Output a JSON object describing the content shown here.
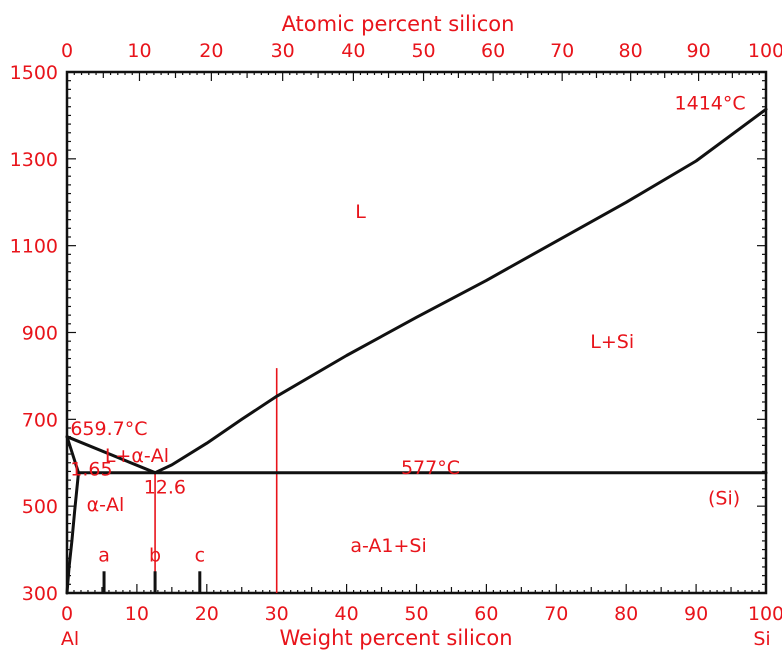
{
  "chart_data": {
    "type": "line",
    "title": "",
    "xlabel": "Weight percent silicon",
    "ylabel": "",
    "top_axis_label": "Atomic percent silicon",
    "xlim": [
      0,
      100
    ],
    "ylim": [
      300,
      1500
    ],
    "x_ticks": [
      "0",
      "10",
      "20",
      "30",
      "40",
      "50",
      "60",
      "70",
      "80",
      "90",
      "100"
    ],
    "y_ticks": [
      "300",
      "500",
      "700",
      "900",
      "1100",
      "1300",
      "1500"
    ],
    "top_ticks": [
      {
        "atomic": 0,
        "label": "0"
      },
      {
        "atomic": 10,
        "label": "10"
      },
      {
        "atomic": 20,
        "label": "20"
      },
      {
        "atomic": 30,
        "label": "30"
      },
      {
        "atomic": 40,
        "label": "40"
      },
      {
        "atomic": 50,
        "label": "50"
      },
      {
        "atomic": 60,
        "label": "60"
      },
      {
        "atomic": 70,
        "label": "70"
      },
      {
        "atomic": 80,
        "label": "80"
      },
      {
        "atomic": 90,
        "label": "90"
      },
      {
        "atomic": 100,
        "label": "100"
      }
    ],
    "end_labels": {
      "left": "Al",
      "right": "Si"
    },
    "series": [
      {
        "values": [
          [
            0,
            660
          ],
          [
            12.6,
            577
          ]
        ]
      },
      {
        "values": [
          [
            12.6,
            577
          ],
          [
            15,
            595
          ],
          [
            20,
            645
          ],
          [
            25,
            700
          ],
          [
            30,
            753
          ],
          [
            40,
            847
          ],
          [
            50,
            935
          ],
          [
            60,
            1020
          ],
          [
            70,
            1110
          ],
          [
            80,
            1200
          ],
          [
            90,
            1295
          ],
          [
            100,
            1414
          ]
        ]
      },
      {
        "values": [
          [
            0,
            660
          ],
          [
            1.65,
            577
          ]
        ]
      },
      {
        "values": [
          [
            0,
            300
          ],
          [
            0.3,
            360
          ],
          [
            0.7,
            420
          ],
          [
            1.1,
            490
          ],
          [
            1.65,
            577
          ]
        ]
      },
      {
        "values": [
          [
            1.65,
            577
          ],
          [
            100,
            577
          ]
        ]
      }
    ],
    "guide_lines": [
      {
        "x": 12.6,
        "y_from": 300,
        "y_to": 577
      },
      {
        "x": 30,
        "y_from": 300,
        "y_to": 818
      }
    ],
    "alloy_markers": [
      {
        "label": "a",
        "x": 5.3,
        "y_top": 350
      },
      {
        "label": "b",
        "x": 12.6,
        "y_top": 350
      },
      {
        "label": "c",
        "x": 19,
        "y_top": 350
      }
    ],
    "annotations": [
      {
        "text": "L",
        "x": 42,
        "y": 1180
      },
      {
        "text": "L+Si",
        "x": 78,
        "y": 880
      },
      {
        "text": "1414°C",
        "x": 92,
        "y": 1430
      },
      {
        "text": "659.7°C",
        "x": 6,
        "y": 680
      },
      {
        "text": "L+α-Al",
        "x": 10,
        "y": 618
      },
      {
        "text": "1.65",
        "x": 3.5,
        "y": 587
      },
      {
        "text": "577°C",
        "x": 52,
        "y": 590
      },
      {
        "text": "12.6",
        "x": 14,
        "y": 545
      },
      {
        "text": "α-Al",
        "x": 5.5,
        "y": 505
      },
      {
        "text": "(Si)",
        "x": 94,
        "y": 520
      },
      {
        "text": "a-A1+Si",
        "x": 46,
        "y": 410
      }
    ]
  }
}
